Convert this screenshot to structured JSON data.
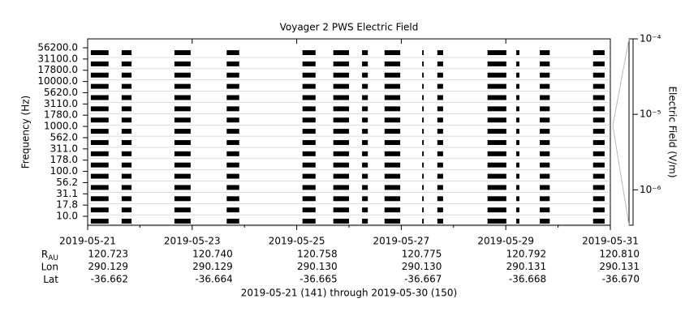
{
  "chart_data": {
    "type": "coverage",
    "title": "Voyager 2 PWS Electric Field",
    "y_label": "Frequency (Hz)",
    "y2_label": "Electric Field (V/m)",
    "channels": [
      "56200.0",
      "31100.0",
      "17800.0",
      "10000.0",
      "5620.0",
      "3110.0",
      "1780.0",
      "1000.0",
      "562.0",
      "311.0",
      "178.0",
      "100.0",
      "56.2",
      "31.1",
      "17.8",
      "10.0"
    ],
    "xlim": [
      0,
      10
    ],
    "xticks": [
      {
        "value": 0,
        "label": "2019-05-21"
      },
      {
        "value": 2,
        "label": "2019-05-23"
      },
      {
        "value": 4,
        "label": "2019-05-25"
      },
      {
        "value": 6,
        "label": "2019-05-27"
      },
      {
        "value": 8,
        "label": "2019-05-29"
      },
      {
        "value": 10,
        "label": "2019-05-31"
      }
    ],
    "coverage": [
      [
        0.06,
        0.4
      ],
      [
        0.65,
        0.84
      ],
      [
        1.66,
        1.97
      ],
      [
        2.66,
        2.9
      ],
      [
        4.11,
        4.36
      ],
      [
        4.7,
        5.0
      ],
      [
        5.25,
        5.36
      ],
      [
        5.68,
        5.98
      ],
      [
        6.4,
        6.43
      ],
      [
        6.69,
        6.8
      ],
      [
        7.65,
        8.01
      ],
      [
        8.2,
        8.26
      ],
      [
        8.65,
        8.84
      ],
      [
        9.67,
        9.89
      ]
    ],
    "color": "#000000",
    "y2lim": [
      3.4e-07,
      0.0001
    ],
    "y2ticks": [
      {
        "value": 0.0001,
        "label": "10⁻⁴"
      },
      {
        "value": 1e-05,
        "label": "10⁻⁵"
      },
      {
        "value": 1e-06,
        "label": "10⁻⁶"
      }
    ],
    "y2_log": true,
    "ephemeris": [
      {
        "label": "R",
        "sub": "AU",
        "values": [
          "120.723",
          "120.740",
          "120.758",
          "120.775",
          "120.792",
          "120.810"
        ]
      },
      {
        "label": "Lon",
        "values": [
          "290.129",
          "290.129",
          "290.130",
          "290.130",
          "290.131",
          "290.131"
        ]
      },
      {
        "label": "Lat",
        "values": [
          "-36.662",
          "-36.664",
          "-36.665",
          "-36.667",
          "-36.668",
          "-36.670"
        ]
      }
    ],
    "footer": "2019-05-21 (141) through 2019-05-30 (150)"
  }
}
